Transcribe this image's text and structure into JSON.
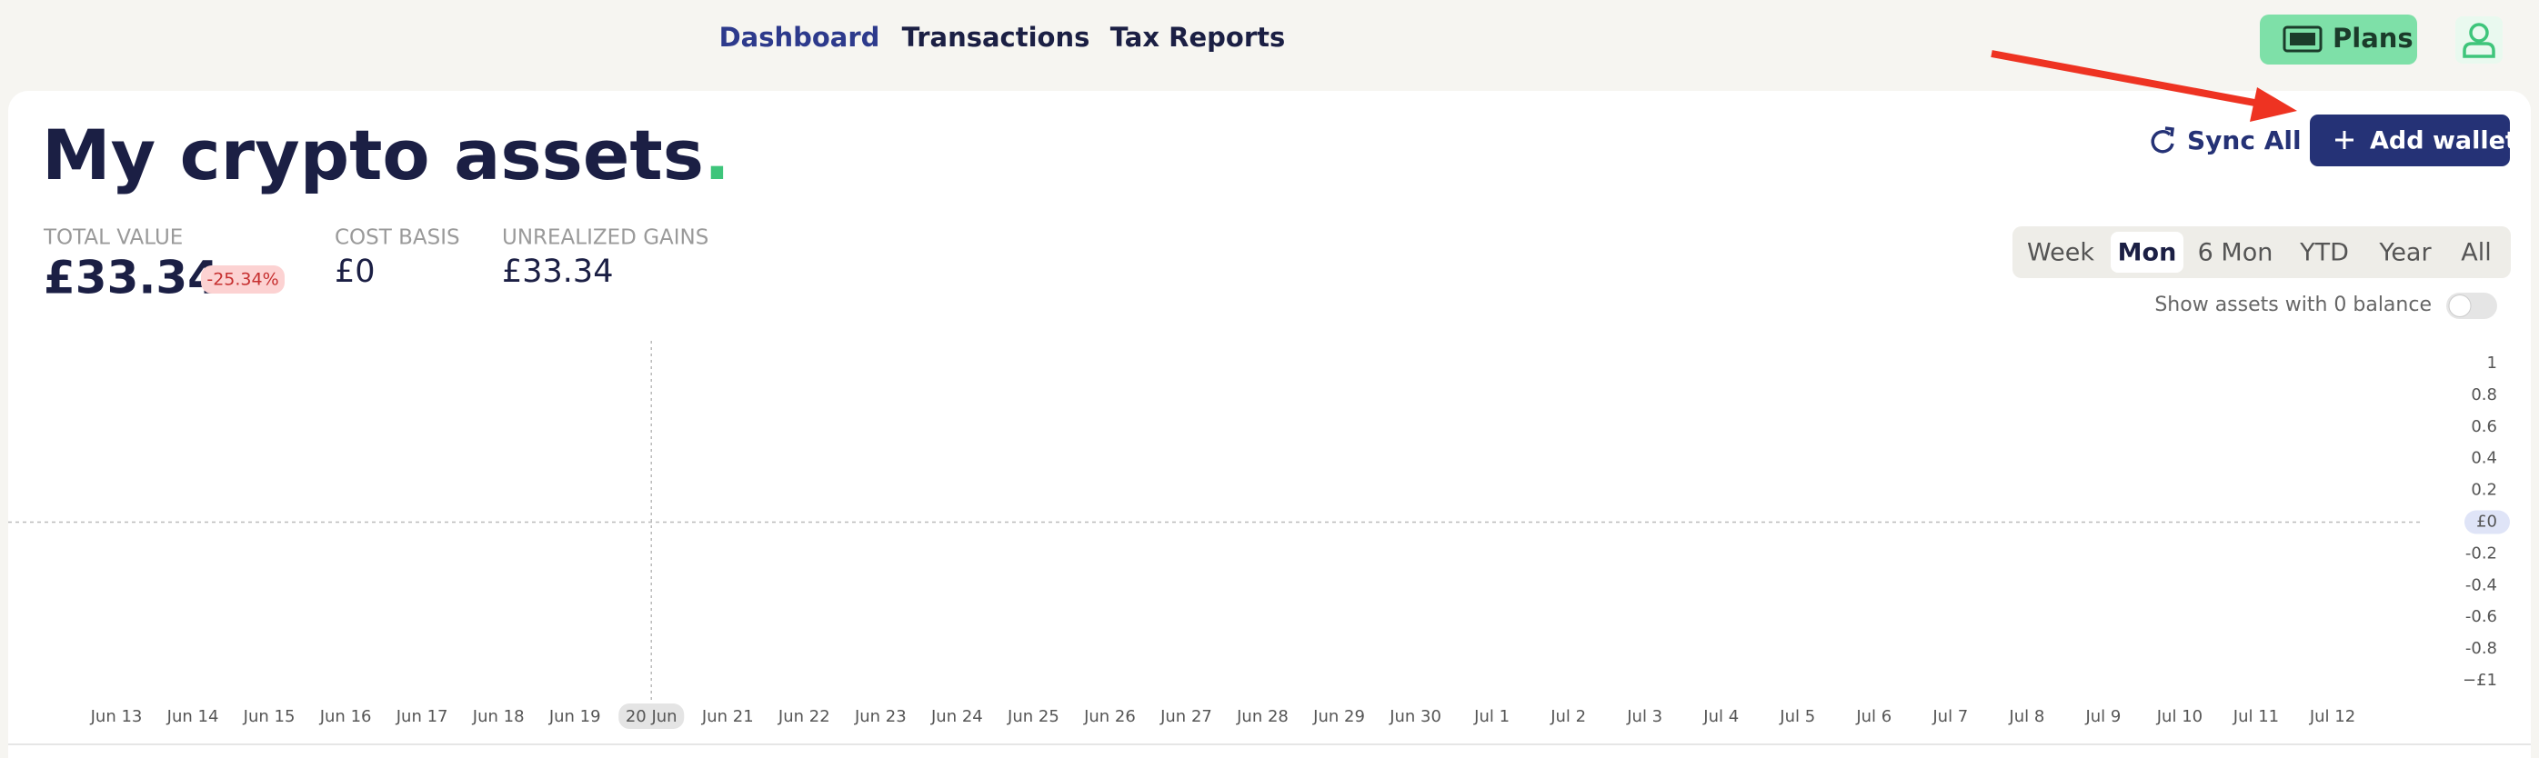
{
  "nav": {
    "links": [
      "Dashboard",
      "Transactions",
      "Tax Reports"
    ],
    "active": 0,
    "plans": "Plans"
  },
  "header": {
    "title": "My crypto assets",
    "title_dot": ".",
    "sync": "Sync All",
    "add_wallet": "Add wallet"
  },
  "stats": [
    {
      "label": "TOTAL VALUE",
      "value": "£33.34",
      "badge": "-25.34%"
    },
    {
      "label": "COST BASIS",
      "value": "£0"
    },
    {
      "label": "UNREALIZED GAINS",
      "value": "£33.34"
    }
  ],
  "ranges": [
    "Week",
    "Mon",
    "6 Mon",
    "YTD",
    "Year",
    "All"
  ],
  "active_range": 1,
  "toggle_label": "Show assets with 0 balance",
  "chart_data": {
    "type": "line",
    "x": [
      "Jun 13",
      "Jun 14",
      "Jun 15",
      "Jun 16",
      "Jun 17",
      "Jun 18",
      "Jun 19",
      "Jun 20",
      "Jun 21",
      "Jun 22",
      "Jun 23",
      "Jun 24",
      "Jun 25",
      "Jun 26",
      "Jun 27",
      "Jun 28",
      "Jun 29",
      "Jun 30",
      "Jul 1",
      "Jul 2",
      "Jul 3",
      "Jul 4",
      "Jul 5",
      "Jul 6",
      "Jul 7",
      "Jul 8",
      "Jul 9",
      "Jul 10",
      "Jul 11",
      "Jul 12"
    ],
    "series": [
      {
        "color": "#2fb27a",
        "color_end": "#5b6fd8",
        "values": [
          0,
          0,
          0,
          0,
          0,
          0,
          0,
          0,
          0,
          0,
          0,
          0,
          0,
          0,
          0,
          0,
          0,
          0,
          0,
          0,
          0,
          0,
          0,
          0,
          0,
          0,
          0,
          0,
          0,
          0
        ]
      }
    ],
    "ylim": [
      -1,
      1
    ],
    "yticks": [
      {
        "value": -1,
        "label": "−£1"
      },
      -0.8,
      -0.6,
      -0.4,
      -0.2,
      {
        "value": 0,
        "label": "£0"
      },
      0.2,
      0.4,
      0.6,
      0.8,
      1
    ],
    "crosshair": {
      "index": 7,
      "label": "20 Jun"
    }
  }
}
